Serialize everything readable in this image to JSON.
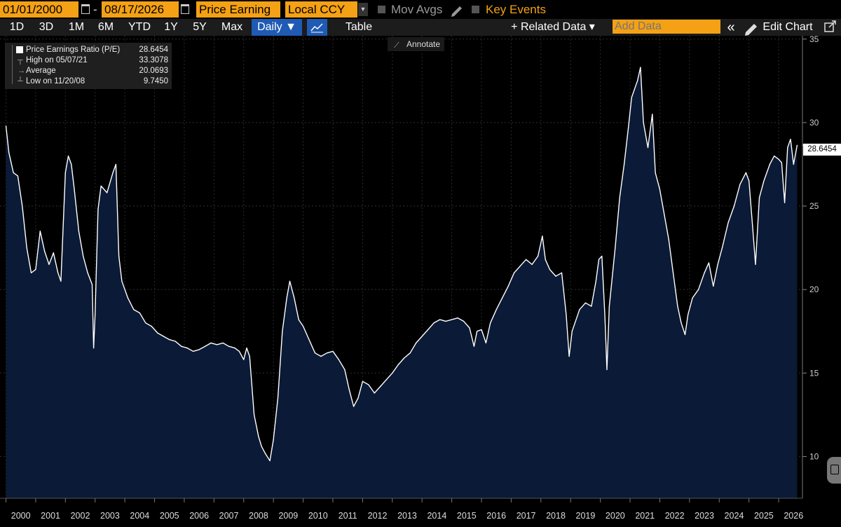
{
  "toolbar": {
    "start_date": "01/01/2000",
    "end_date": "08/17/2026",
    "separator": "-",
    "field": "Price Earning",
    "currency": "Local CCY",
    "mov_avgs": "Mov Avgs",
    "key_events": "Key Events",
    "colors": {
      "accent": "#f5a115",
      "selected": "#1f5bb4"
    }
  },
  "periods": [
    "1D",
    "3D",
    "1M",
    "6M",
    "YTD",
    "1Y",
    "5Y",
    "Max"
  ],
  "frequency": "Daily ▼",
  "table_label": "Table",
  "related_data": "+ Related Data ▾",
  "add_data_placeholder": "Add Data",
  "collapse_icon": "«",
  "edit_chart": "Edit Chart",
  "annotate": "Annotate",
  "legend": {
    "series_name": "Price Earnings Ratio (P/E)",
    "series_value": "28.6454",
    "high_label": "High on 05/07/21",
    "high_value": "33.3078",
    "avg_label": "Average",
    "avg_value": "20.0693",
    "low_label": "Low on 11/20/08",
    "low_value": "9.7450"
  },
  "last_value_label": "28.6454",
  "chart_data": {
    "type": "area",
    "title": "",
    "xlabel": "",
    "ylabel": "",
    "x_ticks": [
      "2000",
      "2001",
      "2002",
      "2003",
      "2004",
      "2005",
      "2006",
      "2007",
      "2008",
      "2009",
      "2010",
      "2011",
      "2012",
      "2013",
      "2014",
      "2015",
      "2016",
      "2017",
      "2018",
      "2019",
      "2020",
      "2021",
      "2022",
      "2023",
      "2024",
      "2025",
      "2026"
    ],
    "y_ticks": [
      10,
      15,
      20,
      25,
      30,
      35
    ],
    "ylim": [
      7.5,
      35.2
    ],
    "xlim": [
      1999.8,
      2026.8
    ],
    "grid": true,
    "series": [
      {
        "name": "Price Earnings Ratio (P/E)",
        "color": "#ffffff",
        "fill": "#0b1a36",
        "points": [
          [
            2000.0,
            29.8
          ],
          [
            2000.1,
            28.2
          ],
          [
            2000.25,
            27.0
          ],
          [
            2000.4,
            26.8
          ],
          [
            2000.55,
            25.0
          ],
          [
            2000.7,
            22.5
          ],
          [
            2000.85,
            21.0
          ],
          [
            2001.0,
            21.2
          ],
          [
            2001.15,
            23.5
          ],
          [
            2001.3,
            22.3
          ],
          [
            2001.45,
            21.5
          ],
          [
            2001.6,
            22.2
          ],
          [
            2001.75,
            21.0
          ],
          [
            2001.85,
            20.5
          ],
          [
            2002.0,
            27.0
          ],
          [
            2002.1,
            28.0
          ],
          [
            2002.2,
            27.5
          ],
          [
            2002.3,
            26.0
          ],
          [
            2002.45,
            23.5
          ],
          [
            2002.6,
            22.0
          ],
          [
            2002.75,
            21.0
          ],
          [
            2002.9,
            20.3
          ],
          [
            2002.95,
            16.5
          ],
          [
            2003.0,
            18.5
          ],
          [
            2003.1,
            24.8
          ],
          [
            2003.2,
            26.2
          ],
          [
            2003.4,
            25.8
          ],
          [
            2003.6,
            27.0
          ],
          [
            2003.7,
            27.5
          ],
          [
            2003.8,
            22.0
          ],
          [
            2003.9,
            20.5
          ],
          [
            2004.1,
            19.5
          ],
          [
            2004.3,
            18.8
          ],
          [
            2004.5,
            18.6
          ],
          [
            2004.7,
            18.0
          ],
          [
            2004.9,
            17.8
          ],
          [
            2005.1,
            17.4
          ],
          [
            2005.3,
            17.2
          ],
          [
            2005.5,
            17.0
          ],
          [
            2005.7,
            16.9
          ],
          [
            2005.9,
            16.6
          ],
          [
            2006.1,
            16.5
          ],
          [
            2006.3,
            16.3
          ],
          [
            2006.5,
            16.4
          ],
          [
            2006.7,
            16.6
          ],
          [
            2006.9,
            16.8
          ],
          [
            2007.1,
            16.7
          ],
          [
            2007.3,
            16.8
          ],
          [
            2007.5,
            16.6
          ],
          [
            2007.7,
            16.5
          ],
          [
            2007.85,
            16.3
          ],
          [
            2008.0,
            15.8
          ],
          [
            2008.1,
            16.5
          ],
          [
            2008.2,
            16.0
          ],
          [
            2008.35,
            12.5
          ],
          [
            2008.5,
            11.2
          ],
          [
            2008.6,
            10.6
          ],
          [
            2008.72,
            10.2
          ],
          [
            2008.88,
            9.745
          ],
          [
            2009.0,
            11.0
          ],
          [
            2009.15,
            13.5
          ],
          [
            2009.3,
            17.5
          ],
          [
            2009.45,
            19.5
          ],
          [
            2009.55,
            20.5
          ],
          [
            2009.7,
            19.5
          ],
          [
            2009.85,
            18.2
          ],
          [
            2010.0,
            17.8
          ],
          [
            2010.2,
            17.0
          ],
          [
            2010.4,
            16.2
          ],
          [
            2010.6,
            16.0
          ],
          [
            2010.8,
            16.2
          ],
          [
            2011.0,
            16.3
          ],
          [
            2011.2,
            15.8
          ],
          [
            2011.4,
            15.2
          ],
          [
            2011.55,
            14.0
          ],
          [
            2011.7,
            13.0
          ],
          [
            2011.85,
            13.5
          ],
          [
            2012.0,
            14.5
          ],
          [
            2012.2,
            14.3
          ],
          [
            2012.4,
            13.8
          ],
          [
            2012.6,
            14.2
          ],
          [
            2012.8,
            14.6
          ],
          [
            2013.0,
            15.0
          ],
          [
            2013.2,
            15.5
          ],
          [
            2013.4,
            15.9
          ],
          [
            2013.6,
            16.2
          ],
          [
            2013.8,
            16.8
          ],
          [
            2014.0,
            17.2
          ],
          [
            2014.2,
            17.6
          ],
          [
            2014.4,
            18.0
          ],
          [
            2014.6,
            18.2
          ],
          [
            2014.8,
            18.1
          ],
          [
            2015.0,
            18.2
          ],
          [
            2015.2,
            18.3
          ],
          [
            2015.4,
            18.1
          ],
          [
            2015.6,
            17.7
          ],
          [
            2015.75,
            16.6
          ],
          [
            2015.85,
            17.5
          ],
          [
            2016.0,
            17.6
          ],
          [
            2016.15,
            16.8
          ],
          [
            2016.3,
            18.0
          ],
          [
            2016.5,
            18.8
          ],
          [
            2016.7,
            19.5
          ],
          [
            2016.9,
            20.2
          ],
          [
            2017.1,
            21.0
          ],
          [
            2017.3,
            21.4
          ],
          [
            2017.5,
            21.8
          ],
          [
            2017.7,
            21.5
          ],
          [
            2017.9,
            22.0
          ],
          [
            2018.05,
            23.2
          ],
          [
            2018.15,
            21.8
          ],
          [
            2018.3,
            21.2
          ],
          [
            2018.5,
            20.8
          ],
          [
            2018.7,
            21.0
          ],
          [
            2018.85,
            18.5
          ],
          [
            2018.95,
            16.0
          ],
          [
            2019.05,
            17.5
          ],
          [
            2019.3,
            18.8
          ],
          [
            2019.5,
            19.2
          ],
          [
            2019.7,
            19.0
          ],
          [
            2019.85,
            20.5
          ],
          [
            2019.95,
            21.8
          ],
          [
            2020.05,
            22.0
          ],
          [
            2020.15,
            18.5
          ],
          [
            2020.22,
            15.2
          ],
          [
            2020.3,
            19.0
          ],
          [
            2020.5,
            22.5
          ],
          [
            2020.65,
            25.5
          ],
          [
            2020.8,
            27.5
          ],
          [
            2020.95,
            29.8
          ],
          [
            2021.05,
            31.5
          ],
          [
            2021.15,
            32.0
          ],
          [
            2021.25,
            32.5
          ],
          [
            2021.35,
            33.3078
          ],
          [
            2021.45,
            30.0
          ],
          [
            2021.6,
            28.5
          ],
          [
            2021.75,
            30.5
          ],
          [
            2021.85,
            27.0
          ],
          [
            2022.0,
            26.0
          ],
          [
            2022.15,
            24.5
          ],
          [
            2022.3,
            23.0
          ],
          [
            2022.45,
            21.0
          ],
          [
            2022.6,
            19.0
          ],
          [
            2022.72,
            18.0
          ],
          [
            2022.85,
            17.3
          ],
          [
            2022.95,
            18.5
          ],
          [
            2023.1,
            19.5
          ],
          [
            2023.3,
            20.0
          ],
          [
            2023.5,
            21.0
          ],
          [
            2023.65,
            21.6
          ],
          [
            2023.8,
            20.2
          ],
          [
            2023.95,
            21.5
          ],
          [
            2024.1,
            22.5
          ],
          [
            2024.3,
            24.0
          ],
          [
            2024.5,
            25.0
          ],
          [
            2024.7,
            26.3
          ],
          [
            2024.9,
            27.0
          ],
          [
            2025.0,
            26.5
          ],
          [
            2025.12,
            23.8
          ],
          [
            2025.22,
            21.5
          ],
          [
            2025.35,
            25.5
          ],
          [
            2025.5,
            26.5
          ],
          [
            2025.7,
            27.5
          ],
          [
            2025.85,
            28.0
          ],
          [
            2026.0,
            27.8
          ],
          [
            2026.1,
            27.6
          ],
          [
            2026.2,
            25.2
          ],
          [
            2026.3,
            28.5
          ],
          [
            2026.4,
            29.0
          ],
          [
            2026.5,
            27.5
          ],
          [
            2026.62,
            28.6454
          ]
        ]
      }
    ],
    "reference_lines": {
      "high": 33.3078,
      "average": 20.0693,
      "low": 9.745,
      "last": 28.6454
    }
  }
}
